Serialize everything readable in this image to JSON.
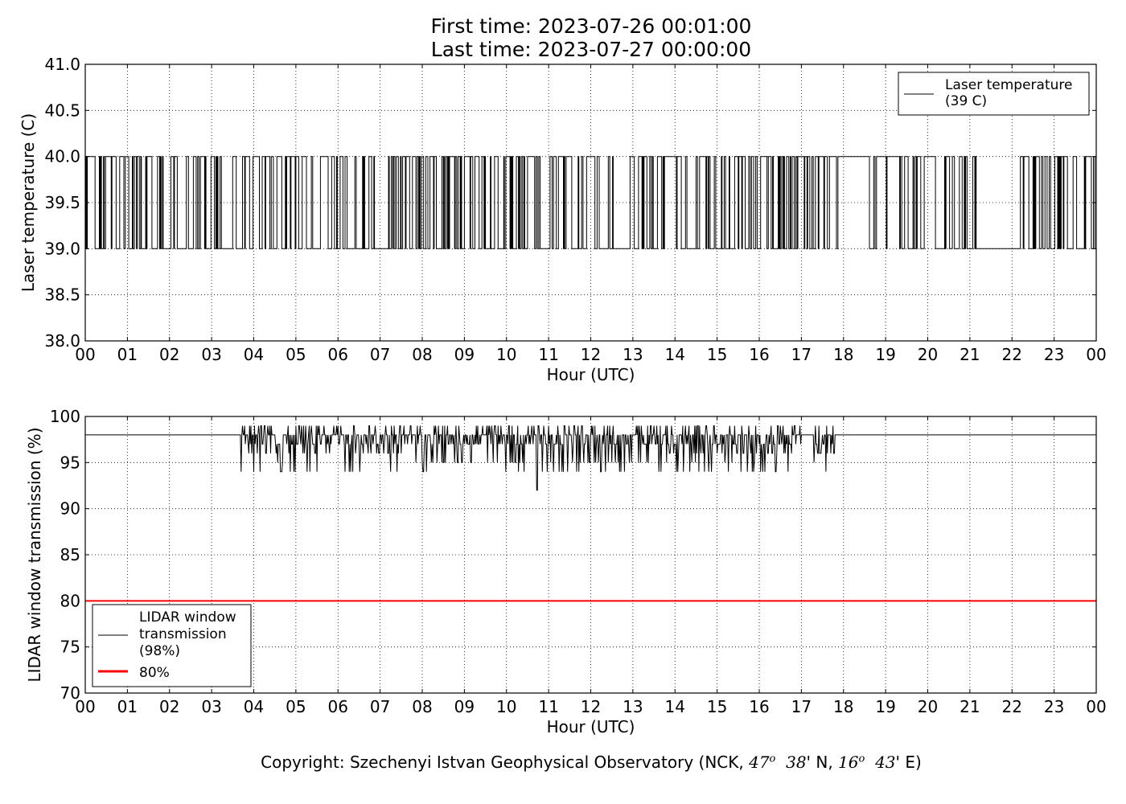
{
  "header": {
    "first_time": "First time: 2023-07-26 00:01:00",
    "last_time": "Last time: 2023-07-27 00:00:00"
  },
  "footer": {
    "prefix": "Copyright: Szechenyi Istvan Geophysical Observatory (NCK, ",
    "lat_deg": "47",
    "lat_min": "38",
    "lat_suffix": "' N, ",
    "lon_deg": "16",
    "lon_min": "43",
    "lon_suffix": "' E)",
    "degree_mark": "o"
  },
  "chart_data": [
    {
      "type": "line",
      "xlabel": "Hour (UTC)",
      "ylabel": "Laser temperature (C)",
      "xlim": [
        0,
        24
      ],
      "ylim": [
        38.0,
        41.0
      ],
      "x_tick_labels": [
        "00",
        "01",
        "02",
        "03",
        "04",
        "05",
        "06",
        "07",
        "08",
        "09",
        "10",
        "11",
        "12",
        "13",
        "14",
        "15",
        "16",
        "17",
        "18",
        "19",
        "20",
        "21",
        "22",
        "23",
        "00"
      ],
      "y_ticks": [
        38.0,
        38.5,
        39.0,
        39.5,
        40.0,
        40.5,
        41.0
      ],
      "y_tick_labels": [
        "38.0",
        "38.5",
        "39.0",
        "39.5",
        "40.0",
        "40.5",
        "41.0"
      ],
      "grid": true,
      "legend_position": "top-right",
      "series": [
        {
          "name": "Laser temperature\n(39 C)",
          "color": "#000000",
          "sampling": "1-minute readings switching between two levels",
          "levels": [
            39.0,
            40.0
          ],
          "dense_switching_periods_hours": [
            [
              0.0,
              3.3
            ],
            [
              3.5,
              6.9
            ],
            [
              7.0,
              12.55
            ],
            [
              12.9,
              15.0
            ],
            [
              15.1,
              17.9
            ],
            [
              18.6,
              21.2
            ],
            [
              22.2,
              24.0
            ]
          ],
          "sparse_switching_periods_hours": [
            [
              15.0,
              15.1
            ],
            [
              17.9,
              18.6
            ]
          ],
          "steady_periods_hours": [
            [
              21.2,
              22.2
            ]
          ],
          "steady_value": 39.0
        }
      ]
    },
    {
      "type": "line",
      "xlabel": "Hour (UTC)",
      "ylabel": "LIDAR window transmission (%)",
      "xlim": [
        0,
        24
      ],
      "ylim": [
        70,
        100
      ],
      "x_tick_labels": [
        "00",
        "01",
        "02",
        "03",
        "04",
        "05",
        "06",
        "07",
        "08",
        "09",
        "10",
        "11",
        "12",
        "13",
        "14",
        "15",
        "16",
        "17",
        "18",
        "19",
        "20",
        "21",
        "22",
        "23",
        "00"
      ],
      "y_ticks": [
        70,
        75,
        80,
        85,
        90,
        95,
        100
      ],
      "y_tick_labels": [
        "70",
        "75",
        "80",
        "85",
        "90",
        "95",
        "100"
      ],
      "grid": true,
      "legend_position": "lower-left",
      "series": [
        {
          "name": "LIDAR window\ntransmission\n(98%)",
          "color": "#000000",
          "baseline": 98,
          "minimum": {
            "x": 10.72,
            "y": 92
          },
          "variable_periods_hours": [
            [
              3.7,
              17.0
            ],
            [
              17.3,
              17.8
            ]
          ],
          "typical_range_in_variable_periods": [
            94,
            99
          ],
          "constant_periods_hours": [
            [
              0.0,
              3.7
            ],
            [
              17.0,
              17.3
            ],
            [
              17.8,
              24.0
            ]
          ]
        },
        {
          "name": "80%",
          "color": "#ff0000",
          "constant_value": 80
        }
      ]
    }
  ]
}
